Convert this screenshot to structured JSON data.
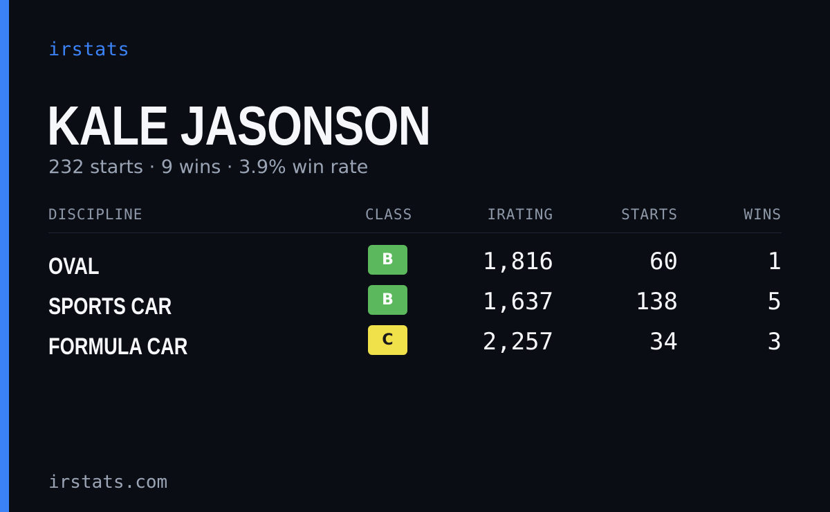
{
  "brand": "irstats",
  "driver": {
    "name": "KALE JASONSON",
    "summary": "232 starts · 9 wins · 3.9% win rate"
  },
  "table": {
    "headers": {
      "discipline": "DISCIPLINE",
      "class": "CLASS",
      "irating": "IRATING",
      "starts": "STARTS",
      "wins": "WINS"
    },
    "rows": [
      {
        "discipline": "OVAL",
        "class": "B",
        "class_color": "#5cb85c",
        "class_text_color": "#ffffff",
        "irating": "1,816",
        "starts": "60",
        "wins": "1"
      },
      {
        "discipline": "SPORTS CAR",
        "class": "B",
        "class_color": "#5cb85c",
        "class_text_color": "#ffffff",
        "irating": "1,637",
        "starts": "138",
        "wins": "5"
      },
      {
        "discipline": "FORMULA CAR",
        "class": "C",
        "class_color": "#f0e04a",
        "class_text_color": "#1a1a1a",
        "irating": "2,257",
        "starts": "34",
        "wins": "3"
      }
    ]
  },
  "footer": "irstats.com",
  "colors": {
    "background": "#0a0d14",
    "accent": "#3b82f6",
    "muted_text": "#9aa4b4"
  }
}
